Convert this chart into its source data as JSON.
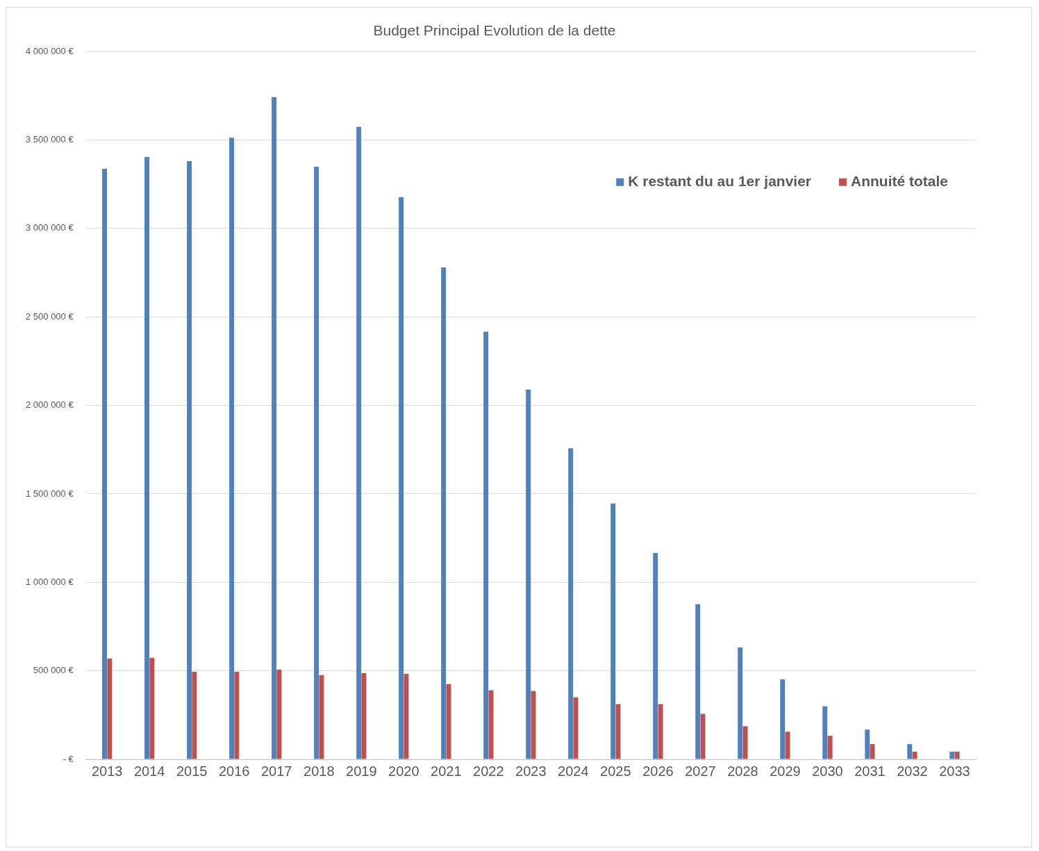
{
  "chart_data": {
    "type": "bar",
    "title": "Budget Principal Evolution de la dette",
    "categories": [
      "2013",
      "2014",
      "2015",
      "2016",
      "2017",
      "2018",
      "2019",
      "2020",
      "2021",
      "2022",
      "2023",
      "2024",
      "2025",
      "2026",
      "2027",
      "2028",
      "2029",
      "2030",
      "2031",
      "2032",
      "2033"
    ],
    "series": [
      {
        "name": "K restant du au 1er janvier",
        "color": "#4f81bd",
        "values": [
          3337000,
          3404000,
          3380000,
          3513000,
          3743000,
          3349000,
          3575000,
          3177000,
          2780000,
          2417000,
          2090000,
          1758000,
          1446000,
          1166000,
          877000,
          632000,
          452000,
          300000,
          168000,
          86000,
          43000
        ]
      },
      {
        "name": "Annuité totale",
        "color": "#c0504d",
        "values": [
          569000,
          573000,
          495000,
          495000,
          507000,
          476000,
          487000,
          483000,
          425000,
          390000,
          386000,
          351000,
          312000,
          312000,
          257000,
          187000,
          156000,
          133000,
          86000,
          43000,
          43000
        ]
      }
    ],
    "ylim": [
      0,
      4000000
    ],
    "yticks": [
      {
        "value": 0,
        "label": "- €"
      },
      {
        "value": 500000,
        "label": "500 000 €"
      },
      {
        "value": 1000000,
        "label": "1 000 000 €"
      },
      {
        "value": 1500000,
        "label": "1 500 000 €"
      },
      {
        "value": 2000000,
        "label": "2 000 000 €"
      },
      {
        "value": 2500000,
        "label": "2 500 000 €"
      },
      {
        "value": 3000000,
        "label": "3 000 000 €"
      },
      {
        "value": 3500000,
        "label": "3 500 000 €"
      },
      {
        "value": 4000000,
        "label": "4 000 000 €"
      }
    ],
    "grid": "y",
    "legend": "top right"
  }
}
